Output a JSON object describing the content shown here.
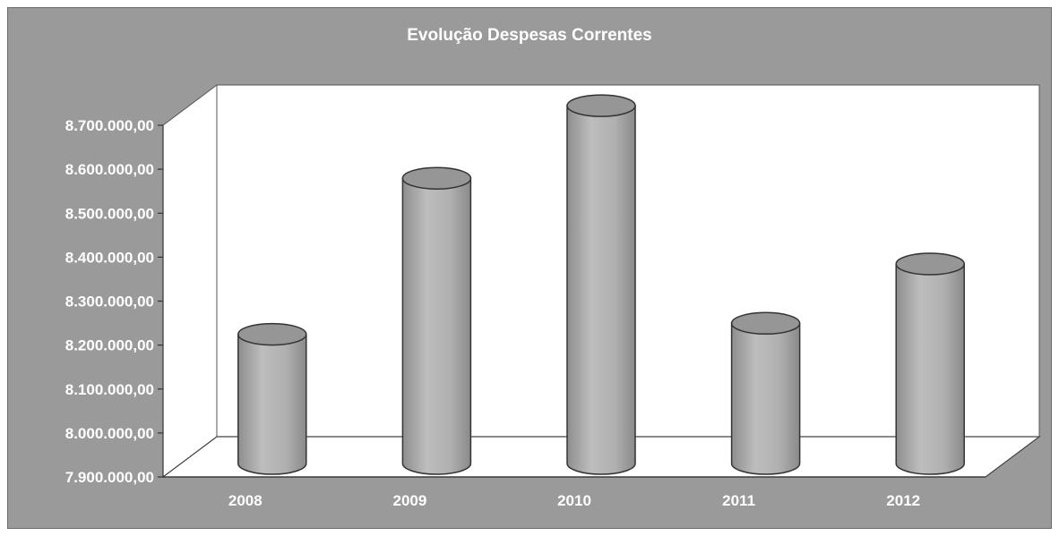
{
  "chart_data": {
    "type": "bar",
    "style": "3d-cylinder",
    "title": "Evolução Despesas Correntes",
    "xlabel": "",
    "ylabel": "",
    "categories": [
      "2008",
      "2009",
      "2010",
      "2011",
      "2012"
    ],
    "values": [
      8195000,
      8550000,
      8715000,
      8220000,
      8355000
    ],
    "ylim": [
      7900000,
      8700000
    ],
    "yticks": [
      7900000,
      8000000,
      8100000,
      8200000,
      8300000,
      8400000,
      8500000,
      8600000,
      8700000
    ],
    "ytick_labels": [
      "7.900.000,00",
      "8.000.000,00",
      "8.100.000,00",
      "8.200.000,00",
      "8.300.000,00",
      "8.400.000,00",
      "8.500.000,00",
      "8.600.000,00",
      "8.700.000,00"
    ],
    "grid": false,
    "legend": "none",
    "colors": {
      "background": "#9a9a9a",
      "wall": "#ffffff",
      "bar": "#aaaaaa",
      "bar_top": "#969696",
      "text": "#ffffff"
    }
  }
}
